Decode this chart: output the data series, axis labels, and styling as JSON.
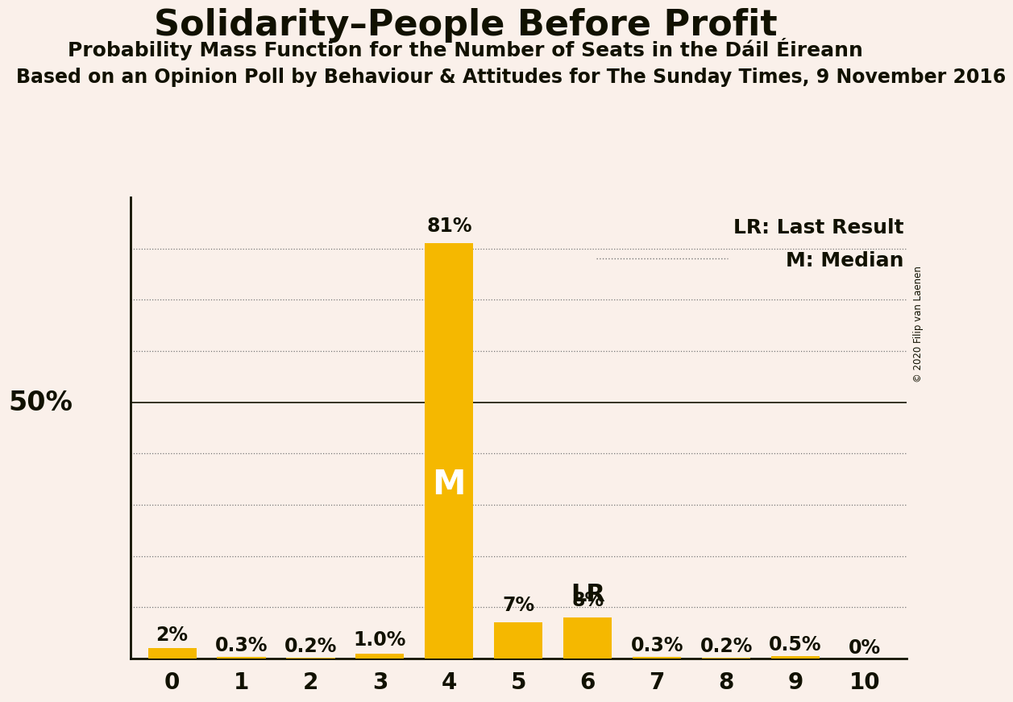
{
  "title": "Solidarity–People Before Profit",
  "subtitle": "Probability Mass Function for the Number of Seats in the Dáil Éireann",
  "source": "Based on an Opinion Poll by Behaviour & Attitudes for The Sunday Times, 9 November 2016",
  "copyright": "© 2020 Filip van Laenen",
  "categories": [
    0,
    1,
    2,
    3,
    4,
    5,
    6,
    7,
    8,
    9,
    10
  ],
  "values": [
    2.0,
    0.3,
    0.2,
    1.0,
    81.0,
    7.0,
    8.0,
    0.3,
    0.2,
    0.5,
    0.0
  ],
  "labels": [
    "2%",
    "0.3%",
    "0.2%",
    "1.0%",
    "81%",
    "7%",
    "8%",
    "0.3%",
    "0.2%",
    "0.5%",
    "0%"
  ],
  "bar_color": "#F5B800",
  "background_color": "#FAF0EA",
  "text_color": "#111100",
  "median_bar": 4,
  "lr_bar": 6,
  "ylim": [
    0,
    90
  ],
  "yticks": [
    10,
    20,
    30,
    40,
    50,
    60,
    70,
    80
  ],
  "title_fontsize": 32,
  "subtitle_fontsize": 18,
  "source_fontsize": 17,
  "label_fontsize": 17,
  "axis_fontsize": 20,
  "legend_fontsize": 18
}
